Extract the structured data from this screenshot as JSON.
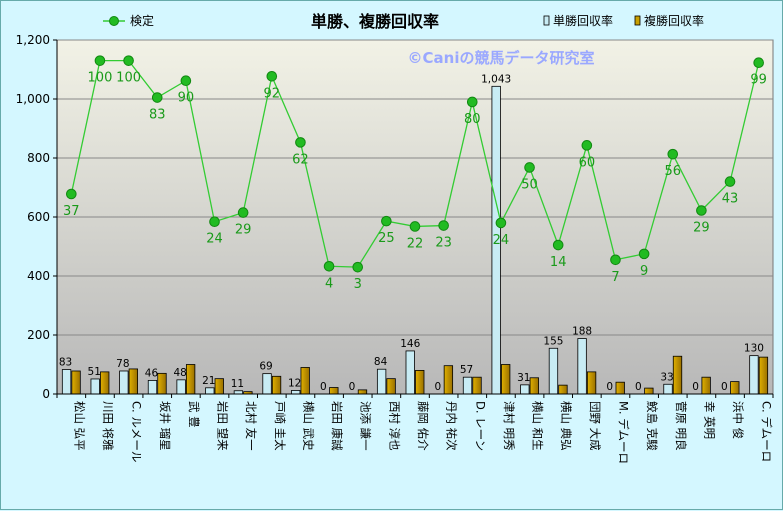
{
  "chart_data": {
    "type": "bar",
    "title": "単勝、複勝回収率",
    "watermark": "©Caniの競馬データ研究室",
    "ylim": [
      0,
      1200
    ],
    "yticks": [
      "0",
      "200",
      "400",
      "600",
      "800",
      "1,000",
      "1,200"
    ],
    "ytick_values": [
      0,
      200,
      400,
      600,
      800,
      1000,
      1200
    ],
    "grid": true,
    "legend_position": "top",
    "categories": [
      "松山 弘平",
      "川田 将雅",
      "C. ルメール",
      "坂井 瑠星",
      "武 豊",
      "岩田 望来",
      "北村 友一",
      "戸崎 圭太",
      "横山 武史",
      "岩田 康誠",
      "池添 謙一",
      "西村 淳也",
      "藤岡 佑介",
      "丹内 祐次",
      "D. レーン",
      "津村 明秀",
      "横山 和生",
      "横山 典弘",
      "団野 大成",
      "M. デムーロ",
      "鮫島 克駿",
      "菅原 明良",
      "幸 英明",
      "浜中 俊",
      "C. デムーロ"
    ],
    "categories_vertical": [
      "松山 弘平",
      "川田 将雅",
      "C. ルメール",
      "坂井 瑠星",
      "武 豊",
      "岩田 望来",
      "北村 友一",
      "戸崎 圭太",
      "横山 武史",
      "岩田 康誠",
      "池添 謙一",
      "西村 淳也",
      "藤岡 佑介",
      "丹内 祐次",
      "D. レーン",
      "津村 明秀",
      "横山 和生",
      "横山 典弘",
      "団野 大成",
      "M. デムーロ",
      "鮫島 克駿",
      "菅原 明良",
      "幸 英明",
      "浜中 俊",
      "C. デムーロ"
    ],
    "series": [
      {
        "name": "単勝回収率",
        "type": "bar",
        "color": "#c8ecf4",
        "values": [
          83,
          51,
          78,
          46,
          48,
          21,
          11,
          69,
          12,
          0,
          0,
          84,
          146,
          0,
          57,
          1043,
          31,
          155,
          188,
          0,
          0,
          33,
          0,
          0,
          130
        ],
        "labels": [
          "83",
          "51",
          "78",
          "46",
          "48",
          "21",
          "11",
          "69",
          "12",
          "0",
          "0",
          "84",
          "146",
          "0",
          "57",
          "1,043",
          "31",
          "155",
          "188",
          "0",
          "0",
          "33",
          "0",
          "0",
          "130"
        ]
      },
      {
        "name": "複勝回収率",
        "type": "bar",
        "color": "#c8a000",
        "values": [
          78,
          75,
          85,
          70,
          100,
          52,
          8,
          60,
          90,
          22,
          14,
          52,
          80,
          96,
          57,
          100,
          55,
          30,
          75,
          40,
          20,
          128,
          57,
          42,
          125
        ]
      },
      {
        "name": "検定",
        "type": "line",
        "color": "#33cc33",
        "values": [
          678,
          1130,
          1130,
          1005,
          1062,
          584,
          615,
          1077,
          853,
          433,
          430,
          586,
          568,
          571,
          990,
          580,
          768,
          505,
          843,
          455,
          475,
          813,
          622,
          720,
          1123
        ],
        "labels": [
          "37",
          "100",
          "100",
          "83",
          "90",
          "24",
          "29",
          "92",
          "62",
          "4",
          "3",
          "25",
          "22",
          "23",
          "80",
          "24",
          "50",
          "14",
          "60",
          "7",
          "9",
          "56",
          "29",
          "43",
          "99"
        ]
      }
    ]
  }
}
